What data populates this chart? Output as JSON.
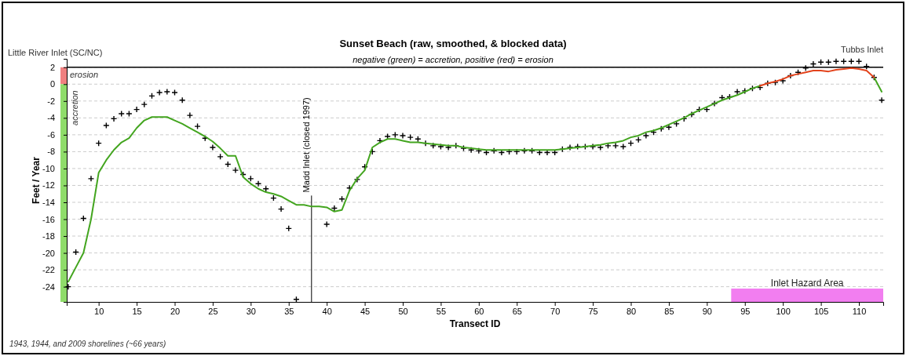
{
  "chart_data": {
    "type": "line",
    "title": "Sunset Beach (raw, smoothed, & blocked data)",
    "subtitle": "negative (green) = accretion, positive (red) = erosion",
    "xlabel": "Transect ID",
    "ylabel": "Feet / Year",
    "annotations": [
      "Little River Inlet (SC/NC)",
      "Tubbs Inlet",
      "1943, 1944, and 2009 shorelines (~66 years)",
      "erosion",
      "accretion"
    ],
    "xlim": [
      5.8,
      113.2
    ],
    "xticks": [
      10,
      15,
      20,
      25,
      30,
      35,
      40,
      45,
      50,
      55,
      60,
      65,
      70,
      75,
      80,
      85,
      90,
      95,
      100,
      105,
      110
    ],
    "ylim": [
      -25.8,
      3
    ],
    "yticks": [
      2,
      0,
      -2,
      -4,
      -6,
      -8,
      -10,
      -12,
      -14,
      -16,
      -18,
      -20,
      -22,
      -24
    ],
    "grid": "y",
    "ref_lines": [
      {
        "axis": "y",
        "value": 2,
        "color": "#000000"
      },
      {
        "axis": "x",
        "value": 38,
        "label": "Madd Inlet (closed 1997)",
        "color": "#000000"
      }
    ],
    "bands": [
      {
        "axis": "x",
        "from": 93.2,
        "to": 113.2,
        "label": "Inlet Hazard Area",
        "color": "#f27ef0"
      }
    ],
    "series": [
      {
        "type": "scatter",
        "marker": "cross",
        "color": "#000000",
        "x": [
          6,
          7,
          8,
          9,
          10,
          11,
          12,
          13,
          14,
          15,
          16,
          17,
          18,
          19,
          20,
          21,
          22,
          23,
          24,
          25,
          26,
          27,
          28,
          29,
          30,
          31,
          32,
          33,
          34,
          35,
          36,
          40,
          41,
          42,
          43,
          44,
          45,
          46,
          47,
          48,
          49,
          50,
          51,
          52,
          53,
          54,
          55,
          56,
          57,
          58,
          59,
          60,
          61,
          62,
          63,
          64,
          65,
          66,
          67,
          68,
          69,
          70,
          71,
          72,
          73,
          74,
          75,
          76,
          77,
          78,
          79,
          80,
          81,
          82,
          83,
          84,
          85,
          86,
          87,
          88,
          89,
          90,
          91,
          92,
          93,
          94,
          95,
          96,
          97,
          98,
          99,
          100,
          101,
          102,
          103,
          104,
          105,
          106,
          107,
          108,
          109,
          110,
          111,
          112,
          113
        ],
        "values": [
          -24,
          -19.9,
          -15.9,
          -11.2,
          -7.0,
          -4.9,
          -4.1,
          -3.5,
          -3.5,
          -3.0,
          -2.4,
          -1.4,
          -1.0,
          -0.9,
          -1.0,
          -1.9,
          -3.7,
          -5.0,
          -6.4,
          -7.5,
          -8.6,
          -9.5,
          -10.2,
          -10.7,
          -11.2,
          -11.8,
          -12.4,
          -13.5,
          -14.8,
          -17.1,
          -25.5,
          -16.6,
          -14.7,
          -13.6,
          -12.3,
          -11.3,
          -9.8,
          -8.0,
          -6.7,
          -6.2,
          -6.0,
          -6.1,
          -6.3,
          -6.5,
          -7.0,
          -7.3,
          -7.4,
          -7.5,
          -7.3,
          -7.6,
          -7.8,
          -7.9,
          -8.1,
          -7.9,
          -8.1,
          -8.0,
          -8.0,
          -7.9,
          -7.9,
          -8.1,
          -8.1,
          -8.1,
          -7.7,
          -7.5,
          -7.4,
          -7.4,
          -7.4,
          -7.5,
          -7.3,
          -7.3,
          -7.4,
          -7.0,
          -6.6,
          -6.1,
          -5.7,
          -5.3,
          -5.1,
          -4.7,
          -4.1,
          -3.6,
          -3.0,
          -3.0,
          -2.3,
          -1.6,
          -1.5,
          -0.9,
          -0.8,
          -0.5,
          -0.4,
          0.1,
          0.2,
          0.4,
          1.0,
          1.4,
          1.9,
          2.4,
          2.6,
          2.6,
          2.7,
          2.7,
          2.7,
          2.7,
          2.1,
          0.8,
          -1.9
        ]
      },
      {
        "type": "line",
        "color": "#43a51f",
        "x": [
          6,
          7,
          8,
          9,
          10,
          11,
          12,
          13,
          14,
          15,
          16,
          17,
          18,
          19,
          20,
          21,
          22,
          23,
          24,
          25,
          26,
          27,
          28,
          29,
          30,
          31,
          32,
          33,
          34,
          35,
          36,
          37,
          38,
          39,
          40,
          41,
          42,
          43,
          44,
          45,
          46,
          47,
          48,
          49,
          50,
          51,
          52,
          53,
          54,
          55,
          56,
          57,
          58,
          59,
          60,
          61,
          62,
          63,
          64,
          65,
          66,
          67,
          68,
          69,
          70,
          71,
          72,
          73,
          74,
          75,
          76,
          77,
          78,
          79,
          80,
          81,
          82,
          83,
          84,
          85,
          86,
          87,
          88,
          89,
          90,
          91,
          92,
          93,
          94,
          95,
          96,
          97,
          98,
          112,
          113
        ],
        "values": [
          -23.4,
          -21.7,
          -20.0,
          -16.0,
          -10.5,
          -9.0,
          -7.8,
          -6.9,
          -6.4,
          -5.2,
          -4.3,
          -3.9,
          -3.9,
          -3.9,
          -4.3,
          -4.7,
          -5.2,
          -5.7,
          -6.2,
          -6.8,
          -7.6,
          -8.5,
          -8.5,
          -11.0,
          -11.8,
          -12.4,
          -12.8,
          -13.0,
          -13.3,
          -13.8,
          -14.3,
          -14.3,
          -14.5,
          -14.5,
          -14.6,
          -15.1,
          -14.9,
          -12.6,
          -11.2,
          -10.2,
          -7.5,
          -6.9,
          -6.5,
          -6.5,
          -6.7,
          -6.9,
          -6.9,
          -7.0,
          -7.1,
          -7.2,
          -7.3,
          -7.3,
          -7.5,
          -7.6,
          -7.7,
          -7.8,
          -7.8,
          -7.8,
          -7.8,
          -7.8,
          -7.8,
          -7.8,
          -7.8,
          -7.8,
          -7.8,
          -7.7,
          -7.6,
          -7.5,
          -7.4,
          -7.3,
          -7.2,
          -7.0,
          -6.9,
          -6.7,
          -6.3,
          -6.1,
          -5.7,
          -5.5,
          -5.2,
          -4.8,
          -4.4,
          -4.0,
          -3.5,
          -3.1,
          -2.7,
          -2.3,
          -1.9,
          -1.6,
          -1.3,
          -0.9,
          -0.5,
          -0.2,
          null,
          0.8,
          -0.9
        ]
      },
      {
        "type": "line",
        "color": "#e3431c",
        "x": [
          97,
          98,
          99,
          100,
          101,
          102,
          103,
          104,
          105,
          106,
          107,
          108,
          109,
          110,
          111,
          112
        ],
        "values": [
          -0.2,
          0.1,
          0.3,
          0.6,
          1.0,
          1.2,
          1.4,
          1.6,
          1.6,
          1.5,
          1.7,
          1.8,
          1.9,
          1.8,
          1.6,
          0.8
        ]
      }
    ]
  }
}
